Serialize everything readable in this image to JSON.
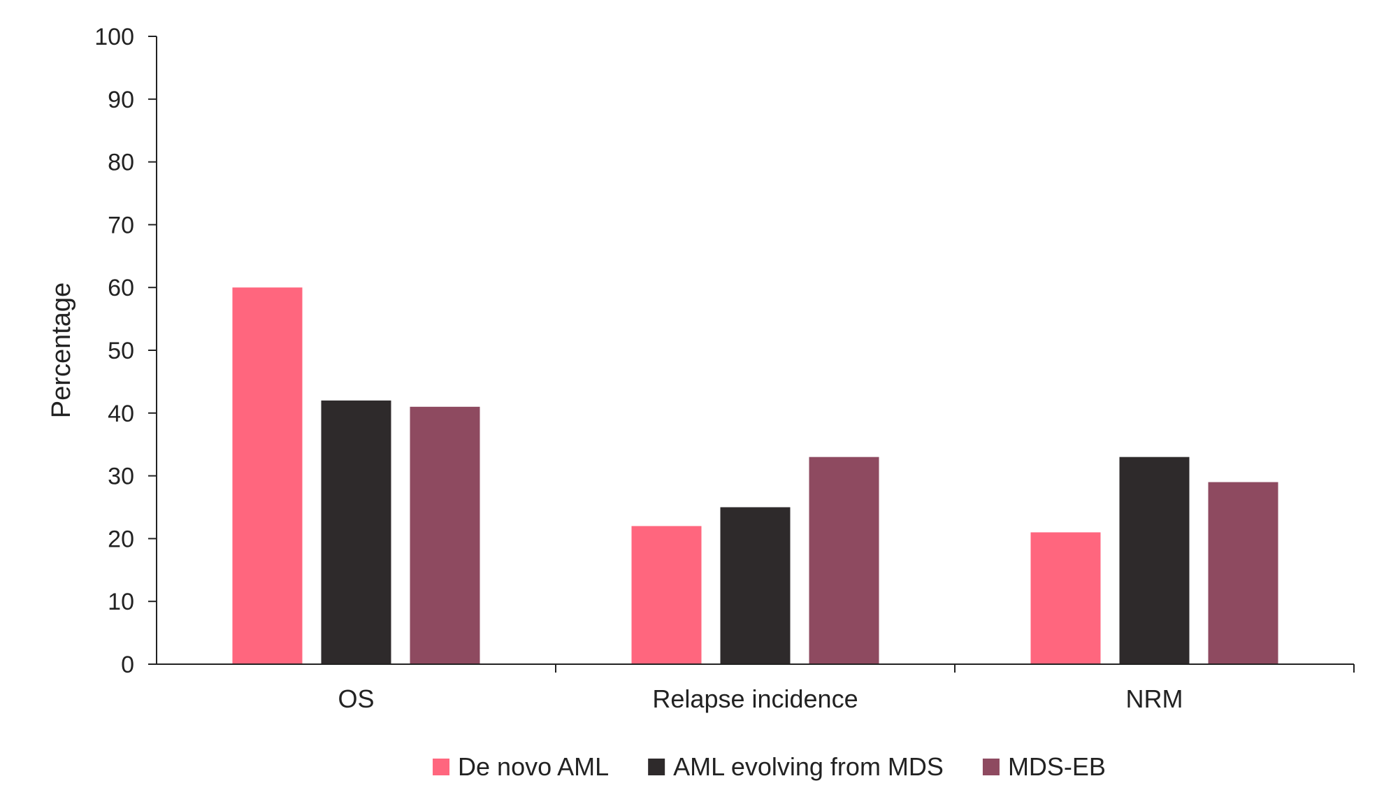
{
  "chart_data": {
    "type": "bar",
    "title": "",
    "xlabel": "",
    "ylabel": "Percentage",
    "ylim": [
      0,
      100
    ],
    "yticks": [
      0,
      10,
      20,
      30,
      40,
      50,
      60,
      70,
      80,
      90,
      100
    ],
    "categories": [
      "OS",
      "Relapse incidence",
      "NRM"
    ],
    "series": [
      {
        "name": "De novo AML",
        "color": "#ff667e",
        "values": [
          60,
          22,
          21
        ]
      },
      {
        "name": "AML evolving from MDS",
        "color": "#2e2a2b",
        "values": [
          42,
          25,
          33
        ]
      },
      {
        "name": "MDS-EB",
        "color": "#8e4a60",
        "values": [
          41,
          33,
          29
        ]
      }
    ],
    "grid": false,
    "legend_position": "bottom"
  }
}
